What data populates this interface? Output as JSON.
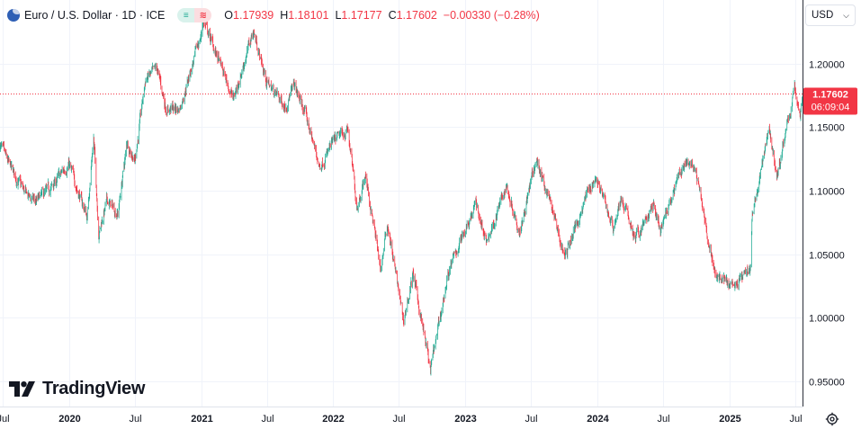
{
  "legend": {
    "symbol": "Euro / U.S. Dollar · 1D · ICE",
    "badge_up": "≡",
    "badge_down": "≋",
    "open_label": "O",
    "open": "1.17939",
    "high_label": "H",
    "high": "1.18101",
    "low_label": "L",
    "low": "1.17177",
    "close_label": "C",
    "close": "1.17602",
    "change": "−0.00330 (−0.28%)"
  },
  "currency": {
    "label": "USD"
  },
  "price_tag": {
    "price": "1.17602",
    "countdown": "06:09:04"
  },
  "brand": {
    "name": "TradingView"
  },
  "colors": {
    "up": "#22ab94",
    "down": "#f23645",
    "grid": "#f0f3fa",
    "axis_text": "#131722"
  },
  "chart_data": {
    "type": "candlestick",
    "title": "Euro / U.S. Dollar · 1D · ICE",
    "ylim": [
      0.93,
      1.25
    ],
    "y_ticks": [
      "1.20000",
      "1.15000",
      "1.10000",
      "1.05000",
      "1.00000",
      "0.95000"
    ],
    "y_tick_values": [
      1.2,
      1.15,
      1.1,
      1.05,
      1.0,
      0.95
    ],
    "x_range": [
      "2019-06-24",
      "2025-07-22"
    ],
    "x_ticks": [
      {
        "date": "2019-07-01",
        "label": "Jul"
      },
      {
        "date": "2020-01-01",
        "label": "2020"
      },
      {
        "date": "2020-07-01",
        "label": "Jul"
      },
      {
        "date": "2021-01-01",
        "label": "2021"
      },
      {
        "date": "2021-07-01",
        "label": "Jul"
      },
      {
        "date": "2022-01-01",
        "label": "2022"
      },
      {
        "date": "2022-07-01",
        "label": "Jul"
      },
      {
        "date": "2023-01-01",
        "label": "2023"
      },
      {
        "date": "2023-07-01",
        "label": "Jul"
      },
      {
        "date": "2024-01-01",
        "label": "2024"
      },
      {
        "date": "2024-07-01",
        "label": "Jul"
      },
      {
        "date": "2025-01-01",
        "label": "2025"
      },
      {
        "date": "2025-07-01",
        "label": "Jul"
      }
    ],
    "last_price": 1.17602,
    "grid": true,
    "close_path": [
      [
        "2019-06-24",
        1.136
      ],
      [
        "2019-07-15",
        1.122
      ],
      [
        "2019-09-01",
        1.098
      ],
      [
        "2019-09-30",
        1.091
      ],
      [
        "2019-11-10",
        1.101
      ],
      [
        "2019-12-31",
        1.121
      ],
      [
        "2020-02-20",
        1.079
      ],
      [
        "2020-03-09",
        1.143
      ],
      [
        "2020-03-23",
        1.067
      ],
      [
        "2020-04-15",
        1.092
      ],
      [
        "2020-05-15",
        1.082
      ],
      [
        "2020-06-10",
        1.138
      ],
      [
        "2020-07-01",
        1.124
      ],
      [
        "2020-07-31",
        1.188
      ],
      [
        "2020-09-01",
        1.195
      ],
      [
        "2020-09-25",
        1.165
      ],
      [
        "2020-11-01",
        1.164
      ],
      [
        "2020-12-31",
        1.222
      ],
      [
        "2021-01-06",
        1.234
      ],
      [
        "2021-03-31",
        1.172
      ],
      [
        "2021-05-25",
        1.226
      ],
      [
        "2021-06-30",
        1.186
      ],
      [
        "2021-08-20",
        1.167
      ],
      [
        "2021-09-15",
        1.182
      ],
      [
        "2021-10-15",
        1.161
      ],
      [
        "2021-11-24",
        1.119
      ],
      [
        "2021-12-31",
        1.137
      ],
      [
        "2022-02-10",
        1.148
      ],
      [
        "2022-03-07",
        1.088
      ],
      [
        "2022-03-31",
        1.112
      ],
      [
        "2022-05-12",
        1.038
      ],
      [
        "2022-05-31",
        1.074
      ],
      [
        "2022-07-14",
        0.997
      ],
      [
        "2022-08-10",
        1.034
      ],
      [
        "2022-09-27",
        0.958
      ],
      [
        "2022-11-15",
        1.035
      ],
      [
        "2022-12-31",
        1.07
      ],
      [
        "2023-01-31",
        1.09
      ],
      [
        "2023-02-28",
        1.058
      ],
      [
        "2023-04-25",
        1.104
      ],
      [
        "2023-05-31",
        1.069
      ],
      [
        "2023-07-17",
        1.124
      ],
      [
        "2023-08-31",
        1.085
      ],
      [
        "2023-10-03",
        1.047
      ],
      [
        "2023-11-30",
        1.095
      ],
      [
        "2023-12-28",
        1.111
      ],
      [
        "2024-02-14",
        1.071
      ],
      [
        "2024-03-08",
        1.094
      ],
      [
        "2024-04-16",
        1.062
      ],
      [
        "2024-06-05",
        1.088
      ],
      [
        "2024-06-26",
        1.068
      ],
      [
        "2024-08-23",
        1.118
      ],
      [
        "2024-09-25",
        1.12
      ],
      [
        "2024-11-22",
        1.035
      ],
      [
        "2025-01-13",
        1.022
      ],
      [
        "2025-02-28",
        1.04
      ],
      [
        "2025-03-05",
        1.08
      ],
      [
        "2025-04-21",
        1.15
      ],
      [
        "2025-05-12",
        1.11
      ],
      [
        "2025-06-30",
        1.18
      ],
      [
        "2025-07-16",
        1.16
      ],
      [
        "2025-07-22",
        1.176
      ]
    ]
  }
}
